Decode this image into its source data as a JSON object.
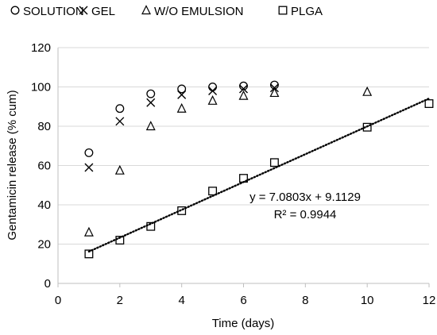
{
  "chart_data": {
    "type": "scatter",
    "xlabel": "Time (days)",
    "ylabel": "Gentamicin release  (% cum)",
    "xlim": [
      0,
      12
    ],
    "ylim": [
      0,
      120
    ],
    "xticks": [
      0,
      2,
      4,
      6,
      8,
      10,
      12
    ],
    "yticks": [
      0,
      20,
      40,
      60,
      80,
      100,
      120
    ],
    "grid": "horizontal",
    "legend_position": "top",
    "series": [
      {
        "name": "SOLUTION",
        "marker": "circle",
        "x": [
          1,
          2,
          3,
          4,
          5,
          6,
          7
        ],
        "y": [
          66.5,
          89,
          96.5,
          99,
          100,
          100.5,
          101
        ]
      },
      {
        "name": "GEL",
        "marker": "x",
        "x": [
          1,
          2,
          3,
          4,
          5,
          6,
          7
        ],
        "y": [
          59,
          82.5,
          92,
          96,
          98,
          99,
          99.5
        ]
      },
      {
        "name": "W/O EMULSION",
        "marker": "triangle",
        "x": [
          1,
          2,
          3,
          4,
          5,
          6,
          7,
          10
        ],
        "y": [
          26,
          57.5,
          80,
          89,
          93,
          95.5,
          97,
          97.5
        ]
      },
      {
        "name": "PLGA",
        "marker": "square",
        "x": [
          1,
          2,
          3,
          4,
          5,
          6,
          7,
          10,
          12
        ],
        "y": [
          15,
          22,
          29,
          37,
          47,
          53.5,
          61.5,
          79.5,
          91.5
        ]
      }
    ],
    "trendline": {
      "slope": 7.0803,
      "intercept": 9.1129,
      "x_range": [
        1,
        12
      ],
      "style": "dotted"
    },
    "annotations": [
      "y = 7.0803x + 9.1129",
      "R² = 0.9944"
    ],
    "colors": {
      "marker": "#000000",
      "grid": "#d9d9d9",
      "axis": "#bfbfbf"
    }
  }
}
